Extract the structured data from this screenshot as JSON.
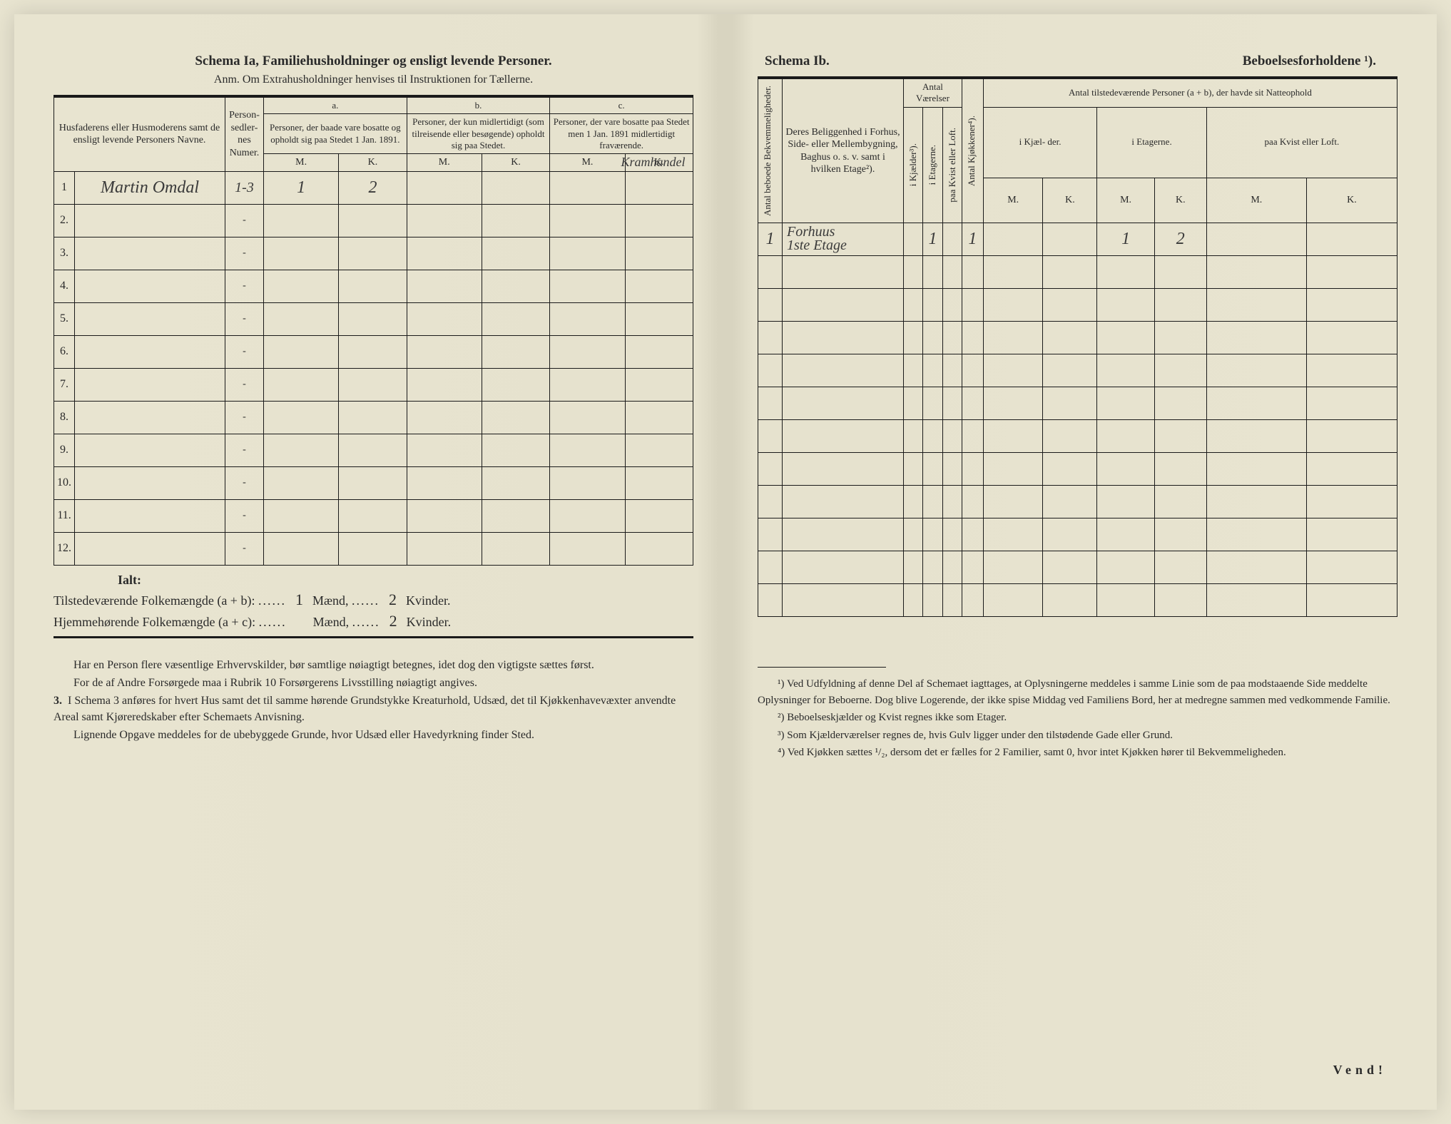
{
  "left": {
    "title": "Schema Ia,   Familiehusholdninger og ensligt levende Personer.",
    "subtitle": "Anm. Om Extrahusholdninger henvises til Instruktionen for Tællerne.",
    "headers": {
      "name": "Husfaderens eller Husmoderens samt de ensligt levende Personers Navne.",
      "personsedler": "Person-\nsedler-\nnes\nNumer.",
      "groupA_label": "a.",
      "groupA_text": "Personer, der baade vare bosatte og opholdt sig paa Stedet 1 Jan. 1891.",
      "groupB_label": "b.",
      "groupB_text": "Personer, der kun midlertidigt (som tilreisende eller besøgende) opholdt sig paa Stedet.",
      "groupC_label": "c.",
      "groupC_text": "Personer, der vare bosatte paa Stedet men 1 Jan. 1891 midlertidigt fraværende.",
      "M": "M.",
      "K": "K."
    },
    "rows": [
      {
        "num": "1",
        "name": "Martin Omdal",
        "sedler": "1-3",
        "aM": "1",
        "aK": "2",
        "bM": "",
        "bK": "",
        "cM": "",
        "cK": "",
        "note": "Kramhandel"
      },
      {
        "num": "2.",
        "name": "",
        "sedler": "-",
        "aM": "",
        "aK": "",
        "bM": "",
        "bK": "",
        "cM": "",
        "cK": "",
        "note": ""
      },
      {
        "num": "3.",
        "name": "",
        "sedler": "-",
        "aM": "",
        "aK": "",
        "bM": "",
        "bK": "",
        "cM": "",
        "cK": "",
        "note": ""
      },
      {
        "num": "4.",
        "name": "",
        "sedler": "-",
        "aM": "",
        "aK": "",
        "bM": "",
        "bK": "",
        "cM": "",
        "cK": "",
        "note": ""
      },
      {
        "num": "5.",
        "name": "",
        "sedler": "-",
        "aM": "",
        "aK": "",
        "bM": "",
        "bK": "",
        "cM": "",
        "cK": "",
        "note": ""
      },
      {
        "num": "6.",
        "name": "",
        "sedler": "-",
        "aM": "",
        "aK": "",
        "bM": "",
        "bK": "",
        "cM": "",
        "cK": "",
        "note": ""
      },
      {
        "num": "7.",
        "name": "",
        "sedler": "-",
        "aM": "",
        "aK": "",
        "bM": "",
        "bK": "",
        "cM": "",
        "cK": "",
        "note": ""
      },
      {
        "num": "8.",
        "name": "",
        "sedler": "-",
        "aM": "",
        "aK": "",
        "bM": "",
        "bK": "",
        "cM": "",
        "cK": "",
        "note": ""
      },
      {
        "num": "9.",
        "name": "",
        "sedler": "-",
        "aM": "",
        "aK": "",
        "bM": "",
        "bK": "",
        "cM": "",
        "cK": "",
        "note": ""
      },
      {
        "num": "10.",
        "name": "",
        "sedler": "-",
        "aM": "",
        "aK": "",
        "bM": "",
        "bK": "",
        "cM": "",
        "cK": "",
        "note": ""
      },
      {
        "num": "11.",
        "name": "",
        "sedler": "-",
        "aM": "",
        "aK": "",
        "bM": "",
        "bK": "",
        "cM": "",
        "cK": "",
        "note": ""
      },
      {
        "num": "12.",
        "name": "",
        "sedler": "-",
        "aM": "",
        "aK": "",
        "bM": "",
        "bK": "",
        "cM": "",
        "cK": "",
        "note": ""
      }
    ],
    "summary": {
      "ialt": "Ialt:",
      "line1_label": "Tilstedeværende Folkemængde (a + b): ",
      "line1_m": "1",
      "line1_k": "2",
      "line2_label": "Hjemmehørende Folkemængde (a + c): ",
      "line2_m": "",
      "line2_k": "2",
      "maend": " Mænd, ",
      "kvinder": " Kvinder."
    },
    "body": {
      "p1": "Har en Person flere væsentlige Erhvervskilder, bør samtlige nøiagtigt betegnes, idet dog den vigtigste sættes først.",
      "p2": "For de af Andre Forsørgede maa i Rubrik 10 Forsørgerens Livsstilling nøiagtigt angives.",
      "p3num": "3.",
      "p3": "I Schema 3 anføres for hvert Hus samt det til samme hørende Grundstykke Kreaturhold, Udsæd, det til Kjøkkenhavevæxter anvendte Areal samt Kjøreredskaber efter Schemaets Anvisning.",
      "p4": "Lignende Opgave meddeles for de ubebyggede Grunde, hvor Udsæd eller Havedyrkning finder Sted."
    }
  },
  "right": {
    "title_left": "Schema Ib.",
    "title_right": "Beboelsesforholdene ¹).",
    "headers": {
      "antal_beboede": "Antal beboede\nBekvemmeligheder.",
      "beliggenhed": "Deres Beliggenhed i Forhus, Side- eller Mellembygning, Baghus o. s. v. samt i hvilken Etage²).",
      "antal_vaerelser": "Antal\nVærelser",
      "i_kjaelder": "i Kjælder³).",
      "i_etagerne": "i Etagerne.",
      "paa_kvist": "paa Kvist eller\nLoft.",
      "antal_kjokkener": "Antal Kjøkkener⁴).",
      "antal_personer": "Antal tilstedeværende Personer (a + b), der havde sit Natteophold",
      "i_kjael_der": "i Kjæl-\nder.",
      "i_etagerne2": "i\nEtagerne.",
      "paa_kvist2": "paa\nKvist\neller\nLoft.",
      "M": "M.",
      "K": "K."
    },
    "rows": [
      {
        "antal": "1",
        "belig": "Forhuus\n1ste Etage",
        "vk": "",
        "ve": "1",
        "vkv": "",
        "kjok": "1",
        "kM": "",
        "kK": "",
        "eM": "1",
        "eK": "2",
        "lM": "",
        "lK": ""
      },
      {
        "antal": "",
        "belig": "",
        "vk": "",
        "ve": "",
        "vkv": "",
        "kjok": "",
        "kM": "",
        "kK": "",
        "eM": "",
        "eK": "",
        "lM": "",
        "lK": ""
      },
      {
        "antal": "",
        "belig": "",
        "vk": "",
        "ve": "",
        "vkv": "",
        "kjok": "",
        "kM": "",
        "kK": "",
        "eM": "",
        "eK": "",
        "lM": "",
        "lK": ""
      },
      {
        "antal": "",
        "belig": "",
        "vk": "",
        "ve": "",
        "vkv": "",
        "kjok": "",
        "kM": "",
        "kK": "",
        "eM": "",
        "eK": "",
        "lM": "",
        "lK": ""
      },
      {
        "antal": "",
        "belig": "",
        "vk": "",
        "ve": "",
        "vkv": "",
        "kjok": "",
        "kM": "",
        "kK": "",
        "eM": "",
        "eK": "",
        "lM": "",
        "lK": ""
      },
      {
        "antal": "",
        "belig": "",
        "vk": "",
        "ve": "",
        "vkv": "",
        "kjok": "",
        "kM": "",
        "kK": "",
        "eM": "",
        "eK": "",
        "lM": "",
        "lK": ""
      },
      {
        "antal": "",
        "belig": "",
        "vk": "",
        "ve": "",
        "vkv": "",
        "kjok": "",
        "kM": "",
        "kK": "",
        "eM": "",
        "eK": "",
        "lM": "",
        "lK": ""
      },
      {
        "antal": "",
        "belig": "",
        "vk": "",
        "ve": "",
        "vkv": "",
        "kjok": "",
        "kM": "",
        "kK": "",
        "eM": "",
        "eK": "",
        "lM": "",
        "lK": ""
      },
      {
        "antal": "",
        "belig": "",
        "vk": "",
        "ve": "",
        "vkv": "",
        "kjok": "",
        "kM": "",
        "kK": "",
        "eM": "",
        "eK": "",
        "lM": "",
        "lK": ""
      },
      {
        "antal": "",
        "belig": "",
        "vk": "",
        "ve": "",
        "vkv": "",
        "kjok": "",
        "kM": "",
        "kK": "",
        "eM": "",
        "eK": "",
        "lM": "",
        "lK": ""
      },
      {
        "antal": "",
        "belig": "",
        "vk": "",
        "ve": "",
        "vkv": "",
        "kjok": "",
        "kM": "",
        "kK": "",
        "eM": "",
        "eK": "",
        "lM": "",
        "lK": ""
      },
      {
        "antal": "",
        "belig": "",
        "vk": "",
        "ve": "",
        "vkv": "",
        "kjok": "",
        "kM": "",
        "kK": "",
        "eM": "",
        "eK": "",
        "lM": "",
        "lK": ""
      }
    ],
    "footnotes": {
      "f1": "¹) Ved Udfyldning af denne Del af Schemaet iagttages, at Oplysningerne meddeles i samme Linie som de paa modstaaende Side meddelte Oplysninger for Beboerne. Dog blive Logerende, der ikke spise Middag ved Familiens Bord, her at medregne sammen med vedkommende Familie.",
      "f2": "²) Beboelseskjælder og Kvist regnes ikke som Etager.",
      "f3": "³) Som Kjælderværelser regnes de, hvis Gulv ligger under den tilstødende Gade eller Grund.",
      "f4": "⁴) Ved Kjøkken sættes ¹/₂, dersom det er fælles for 2 Familier, samt 0, hvor intet Kjøkken hører til Bekvemmeligheden."
    },
    "vend": "Vend!"
  },
  "style": {
    "page_bg": "#e8e4d0",
    "ink": "#2a2a2a",
    "rule": "#1a1a1a",
    "handwriting_color": "#3a3a3a"
  }
}
